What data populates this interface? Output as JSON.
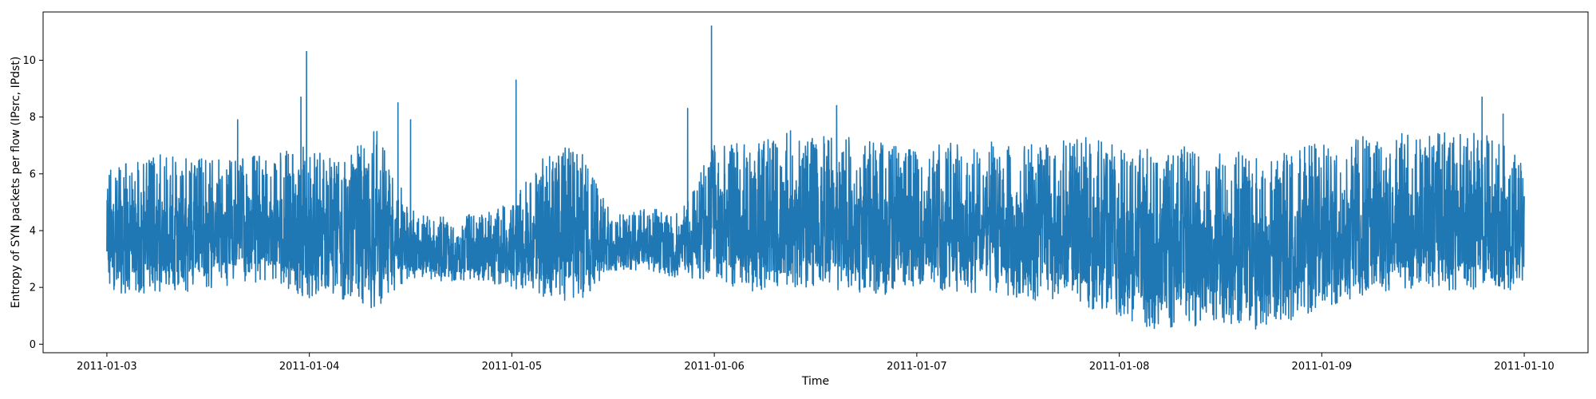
{
  "chart_data": {
    "type": "line",
    "title": "",
    "xlabel": "Time",
    "ylabel": "Entropy of SYN packets per flow (IPsrc, IPdst)",
    "x_type": "datetime",
    "x_range": [
      "2011-01-03",
      "2011-01-10"
    ],
    "ylim": [
      -0.3,
      11.7
    ],
    "x_ticks": [
      "2011-01-03",
      "2011-01-04",
      "2011-01-05",
      "2011-01-06",
      "2011-01-07",
      "2011-01-08",
      "2011-01-09",
      "2011-01-10"
    ],
    "y_ticks": [
      0,
      2,
      4,
      6,
      8,
      10
    ],
    "grid": false,
    "legend": "none",
    "series": [
      {
        "color": "#1f77b4",
        "envelope": {
          "x": [
            "2011-01-03",
            "2011-01-03 04:00",
            "2011-01-03 08:00",
            "2011-01-03 12:00",
            "2011-01-03 16:00",
            "2011-01-03 20:00",
            "2011-01-04",
            "2011-01-04 04:00",
            "2011-01-04 08:00",
            "2011-01-04 12:00",
            "2011-01-04 16:00",
            "2011-01-04 20:00",
            "2011-01-05",
            "2011-01-05 04:00",
            "2011-01-05 08:00",
            "2011-01-05 12:00",
            "2011-01-05 16:00",
            "2011-01-05 20:00",
            "2011-01-06",
            "2011-01-06 04:00",
            "2011-01-06 08:00",
            "2011-01-06 12:00",
            "2011-01-06 16:00",
            "2011-01-06 20:00",
            "2011-01-07",
            "2011-01-07 04:00",
            "2011-01-07 08:00",
            "2011-01-07 12:00",
            "2011-01-07 16:00",
            "2011-01-07 20:00",
            "2011-01-08",
            "2011-01-08 04:00",
            "2011-01-08 08:00",
            "2011-01-08 12:00",
            "2011-01-08 16:00",
            "2011-01-08 20:00",
            "2011-01-09",
            "2011-01-09 04:00",
            "2011-01-09 08:00",
            "2011-01-09 12:00",
            "2011-01-09 16:00",
            "2011-01-09 20:00",
            "2011-01-10"
          ],
          "low": [
            1.8,
            1.8,
            1.8,
            1.9,
            2.2,
            2.1,
            1.6,
            1.5,
            1.2,
            2.2,
            2.2,
            2.2,
            2.0,
            1.6,
            1.5,
            2.6,
            2.6,
            2.3,
            2.3,
            1.8,
            2.0,
            2.0,
            1.8,
            1.7,
            2.0,
            1.8,
            1.8,
            1.6,
            1.5,
            1.3,
            1.0,
            0.5,
            0.6,
            0.8,
            0.4,
            0.8,
            1.3,
            1.6,
            1.9,
            1.9,
            1.9,
            1.8,
            2.0
          ],
          "high": [
            6.5,
            6.5,
            6.8,
            6.5,
            6.6,
            6.7,
            7.0,
            6.5,
            7.6,
            4.8,
            4.5,
            4.6,
            5.0,
            6.8,
            7.0,
            4.5,
            4.8,
            4.6,
            7.2,
            7.0,
            7.6,
            7.3,
            7.4,
            7.2,
            7.0,
            7.1,
            7.2,
            7.0,
            7.1,
            7.3,
            7.0,
            6.9,
            7.0,
            6.8,
            6.8,
            7.0,
            7.1,
            7.3,
            7.5,
            7.4,
            7.5,
            7.4,
            6.8
          ]
        },
        "spikes": [
          {
            "x": "2011-01-03 15:30",
            "y": 7.9
          },
          {
            "x": "2011-01-03 23:00",
            "y": 8.7
          },
          {
            "x": "2011-01-03 23:40",
            "y": 10.3
          },
          {
            "x": "2011-01-04 10:30",
            "y": 8.5
          },
          {
            "x": "2011-01-04 12:00",
            "y": 7.9
          },
          {
            "x": "2011-01-05 00:30",
            "y": 9.3
          },
          {
            "x": "2011-01-05 20:50",
            "y": 8.3
          },
          {
            "x": "2011-01-05 23:40",
            "y": 11.2
          },
          {
            "x": "2011-01-06 14:30",
            "y": 8.4
          },
          {
            "x": "2011-01-09 19:00",
            "y": 8.7
          },
          {
            "x": "2011-01-09 21:30",
            "y": 8.1
          }
        ]
      }
    ]
  }
}
